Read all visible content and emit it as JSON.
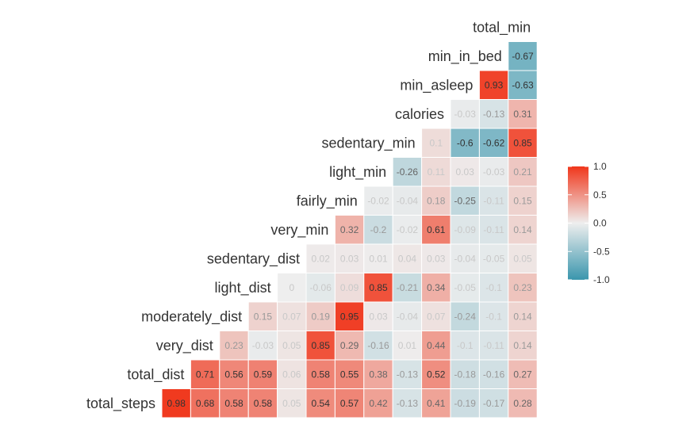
{
  "chart_data": {
    "type": "heatmap",
    "variables": [
      "total_steps",
      "total_dist",
      "very_dist",
      "moderately_dist",
      "light_dist",
      "sedentary_dist",
      "very_min",
      "fairly_min",
      "light_min",
      "sedentary_min",
      "calories",
      "min_asleep",
      "min_in_bed",
      "total_min"
    ],
    "values": [
      [
        0.98,
        0.68,
        0.58,
        0.58,
        0.05,
        0.54,
        0.57,
        0.42,
        -0.13,
        0.41,
        -0.19,
        -0.17,
        0.28
      ],
      [
        0.71,
        0.56,
        0.59,
        0.06,
        0.58,
        0.55,
        0.38,
        -0.13,
        0.52,
        -0.18,
        -0.16,
        0.27
      ],
      [
        0.23,
        -0.03,
        0.05,
        0.85,
        0.29,
        -0.16,
        0.01,
        0.44,
        -0.1,
        -0.11,
        0.14
      ],
      [
        0.15,
        0.07,
        0.19,
        0.95,
        0.03,
        -0.04,
        0.07,
        -0.24,
        -0.1,
        0.14
      ],
      [
        0,
        -0.06,
        0.09,
        0.85,
        -0.21,
        0.34,
        -0.05,
        -0.1,
        0.23
      ],
      [
        0.02,
        0.03,
        0.01,
        0.04,
        0.03,
        -0.04,
        -0.05,
        0.05
      ],
      [
        0.32,
        -0.2,
        -0.02,
        0.61,
        -0.09,
        -0.11,
        0.14
      ],
      [
        -0.02,
        -0.04,
        0.18,
        -0.25,
        -0.11,
        0.15
      ],
      [
        -0.26,
        0.11,
        0.03,
        -0.03,
        0.21
      ],
      [
        0.1,
        -0.6,
        -0.62,
        0.85
      ],
      [
        -0.03,
        -0.13,
        0.31
      ],
      [
        0.93,
        -0.63
      ],
      [
        -0.67
      ]
    ],
    "colorbar": {
      "ticks": [
        "1.0",
        "0.5",
        "0.0",
        "-0.5",
        "-1.0"
      ],
      "tick_values": [
        1,
        0.5,
        0,
        -0.5,
        -1
      ],
      "low_color": "#3a96ad",
      "mid_color": "#eeeeee",
      "high_color": "#f0361b"
    },
    "legend_position": "right"
  }
}
